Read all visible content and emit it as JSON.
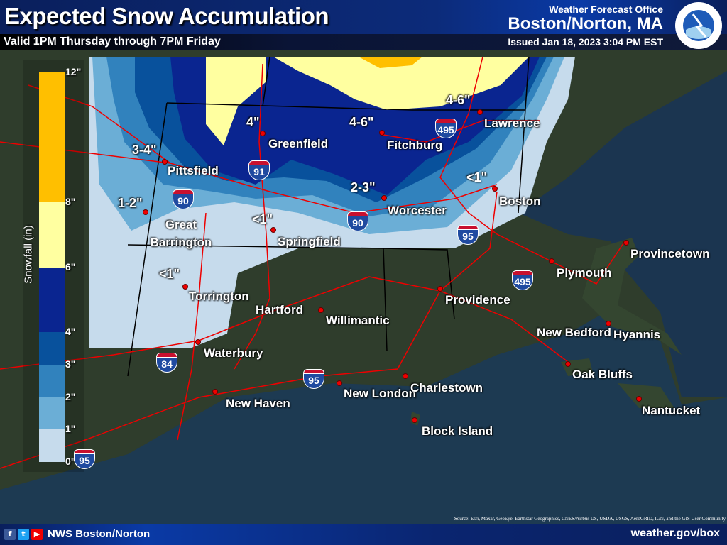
{
  "header": {
    "title": "Expected Snow Accumulation",
    "valid": "Valid 1PM Thursday through 7PM Friday",
    "office_label": "Weather Forecast Office",
    "office": "Boston/Norton, MA",
    "issued": "Issued Jan 18, 2023 3:04 PM EST",
    "logo_text": "NATIONAL WEATHER SERVICE"
  },
  "legend": {
    "title": "Snowfall (in)",
    "ticks": [
      "12\"",
      "8\"",
      "6\"",
      "4\"",
      "3\"",
      "2\"",
      "1\"",
      "0\""
    ],
    "bins": [
      {
        "range": "8-12",
        "color": "#ffbf00"
      },
      {
        "range": "6-8",
        "color": "#ffffa0"
      },
      {
        "range": "4-6",
        "color": "#0a2590"
      },
      {
        "range": "3-4",
        "color": "#08519c"
      },
      {
        "range": "2-3",
        "color": "#3182bd"
      },
      {
        "range": "1-2",
        "color": "#6baed6"
      },
      {
        "range": "0-1",
        "color": "#c6dbec"
      }
    ]
  },
  "cities": [
    "Pittsfield",
    "Greenfield",
    "Fitchburg",
    "Lawrence",
    "Boston",
    "Worcester",
    "Great Barrington",
    "Springfield",
    "Torrington",
    "Hartford",
    "Willimantic",
    "Providence",
    "Plymouth",
    "Provincetown",
    "Hyannis",
    "New Bedford",
    "Waterbury",
    "New Haven",
    "New London",
    "Charlestown",
    "Block Island",
    "Oak Bluffs",
    "Nantucket"
  ],
  "amounts": [
    "4\"",
    "4-6\"",
    "4-6\"",
    "3-4\"",
    "1-2\"",
    "2-3\"",
    "<1\"",
    "<1\"",
    "<1\""
  ],
  "interstates": [
    "495",
    "91",
    "90",
    "90",
    "95",
    "495",
    "84",
    "95",
    "95"
  ],
  "source": "Source: Esri, Maxar, GeoEye, Earthstar Geographics, CNES/Airbus DS, USDA, USGS, AeroGRID, IGN, and the GIS User Community",
  "footer": {
    "name": "NWS Boston/Norton",
    "url": "weather.gov/box",
    "social": [
      "f",
      "t",
      "▶"
    ]
  }
}
